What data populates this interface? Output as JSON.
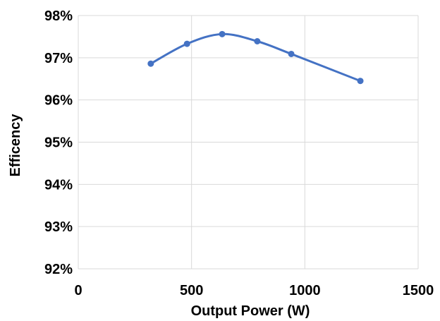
{
  "chart_data": {
    "type": "line",
    "title": "",
    "xlabel": "Output Power (W)",
    "ylabel": "Efficency",
    "xlim": [
      0,
      1500
    ],
    "ylim": [
      92,
      98
    ],
    "x_ticks": [
      0,
      500,
      1000,
      1500
    ],
    "x_tick_labels": [
      "0",
      "500",
      "1000",
      "1500"
    ],
    "y_ticks": [
      92,
      93,
      94,
      95,
      96,
      97,
      98
    ],
    "y_tick_labels": [
      "92%",
      "93%",
      "94%",
      "95%",
      "96%",
      "97%",
      "98%"
    ],
    "grid": true,
    "smooth": true,
    "legend": "none",
    "series": [
      {
        "color": "#4472C4",
        "x": [
          320,
          480,
          635,
          790,
          940,
          1245
        ],
        "y": [
          96.86,
          97.33,
          97.56,
          97.39,
          97.09,
          96.45
        ]
      }
    ]
  }
}
